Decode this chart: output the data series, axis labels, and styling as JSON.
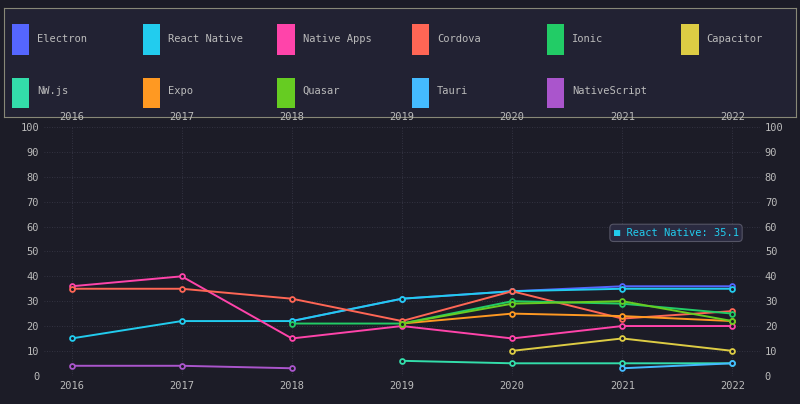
{
  "background_color": "#1c1c27",
  "plot_bg_color": "#1c1c27",
  "legend_bg_color": "#222233",
  "legend_border_color": "#888877",
  "text_color": "#bbbbbb",
  "grid_color": "#3a3a4a",
  "years": [
    2016,
    2017,
    2018,
    2019,
    2020,
    2021,
    2022
  ],
  "series": [
    {
      "name": "Electron",
      "color": "#5566ff",
      "data": [
        null,
        null,
        22,
        31,
        34,
        36,
        36
      ]
    },
    {
      "name": "React Native",
      "color": "#22ccee",
      "data": [
        15,
        22,
        22,
        31,
        34,
        35,
        35
      ]
    },
    {
      "name": "Native Apps",
      "color": "#ff44aa",
      "data": [
        36,
        40,
        15,
        20,
        15,
        20,
        20
      ]
    },
    {
      "name": "Cordova",
      "color": "#ff6655",
      "data": [
        35,
        35,
        31,
        22,
        34,
        23,
        26
      ]
    },
    {
      "name": "Ionic",
      "color": "#22cc66",
      "data": [
        null,
        null,
        21,
        21,
        30,
        29,
        25
      ]
    },
    {
      "name": "Capacitor",
      "color": "#ddcc44",
      "data": [
        null,
        null,
        null,
        null,
        10,
        15,
        10
      ]
    },
    {
      "name": "NW.js",
      "color": "#33ddaa",
      "data": [
        null,
        null,
        null,
        6,
        5,
        5,
        5
      ]
    },
    {
      "name": "Expo",
      "color": "#ff9922",
      "data": [
        null,
        null,
        null,
        21,
        25,
        24,
        22
      ]
    },
    {
      "name": "Quasar",
      "color": "#66cc22",
      "data": [
        null,
        null,
        null,
        21,
        29,
        30,
        22
      ]
    },
    {
      "name": "Tauri",
      "color": "#44bbff",
      "data": [
        null,
        null,
        null,
        null,
        null,
        3,
        5
      ]
    },
    {
      "name": "NativeScript",
      "color": "#aa55cc",
      "data": [
        4,
        4,
        3,
        null,
        null,
        null,
        null
      ]
    }
  ],
  "ylim": [
    0,
    100
  ],
  "yticks": [
    0,
    10,
    20,
    30,
    40,
    50,
    60,
    70,
    80,
    90,
    100
  ],
  "legend_row1": [
    {
      "name": "Electron",
      "color": "#5566ff"
    },
    {
      "name": "React Native",
      "color": "#22ccee"
    },
    {
      "name": "Native Apps",
      "color": "#ff44aa"
    },
    {
      "name": "Cordova",
      "color": "#ff6655"
    },
    {
      "name": "Ionic",
      "color": "#22cc66"
    },
    {
      "name": "Capacitor",
      "color": "#ddcc44"
    }
  ],
  "legend_row2": [
    {
      "name": "NW.js",
      "color": "#33ddaa"
    },
    {
      "name": "Expo",
      "color": "#ff9922"
    },
    {
      "name": "Quasar",
      "color": "#66cc22"
    },
    {
      "name": "Tauri",
      "color": "#44bbff"
    },
    {
      "name": "NativeScript",
      "color": "#aa55cc"
    }
  ],
  "tooltip_text": "React Native: 35.1",
  "tooltip_color": "#22ccee",
  "tooltip_bg": "#2a2a40",
  "tooltip_border": "#555566"
}
